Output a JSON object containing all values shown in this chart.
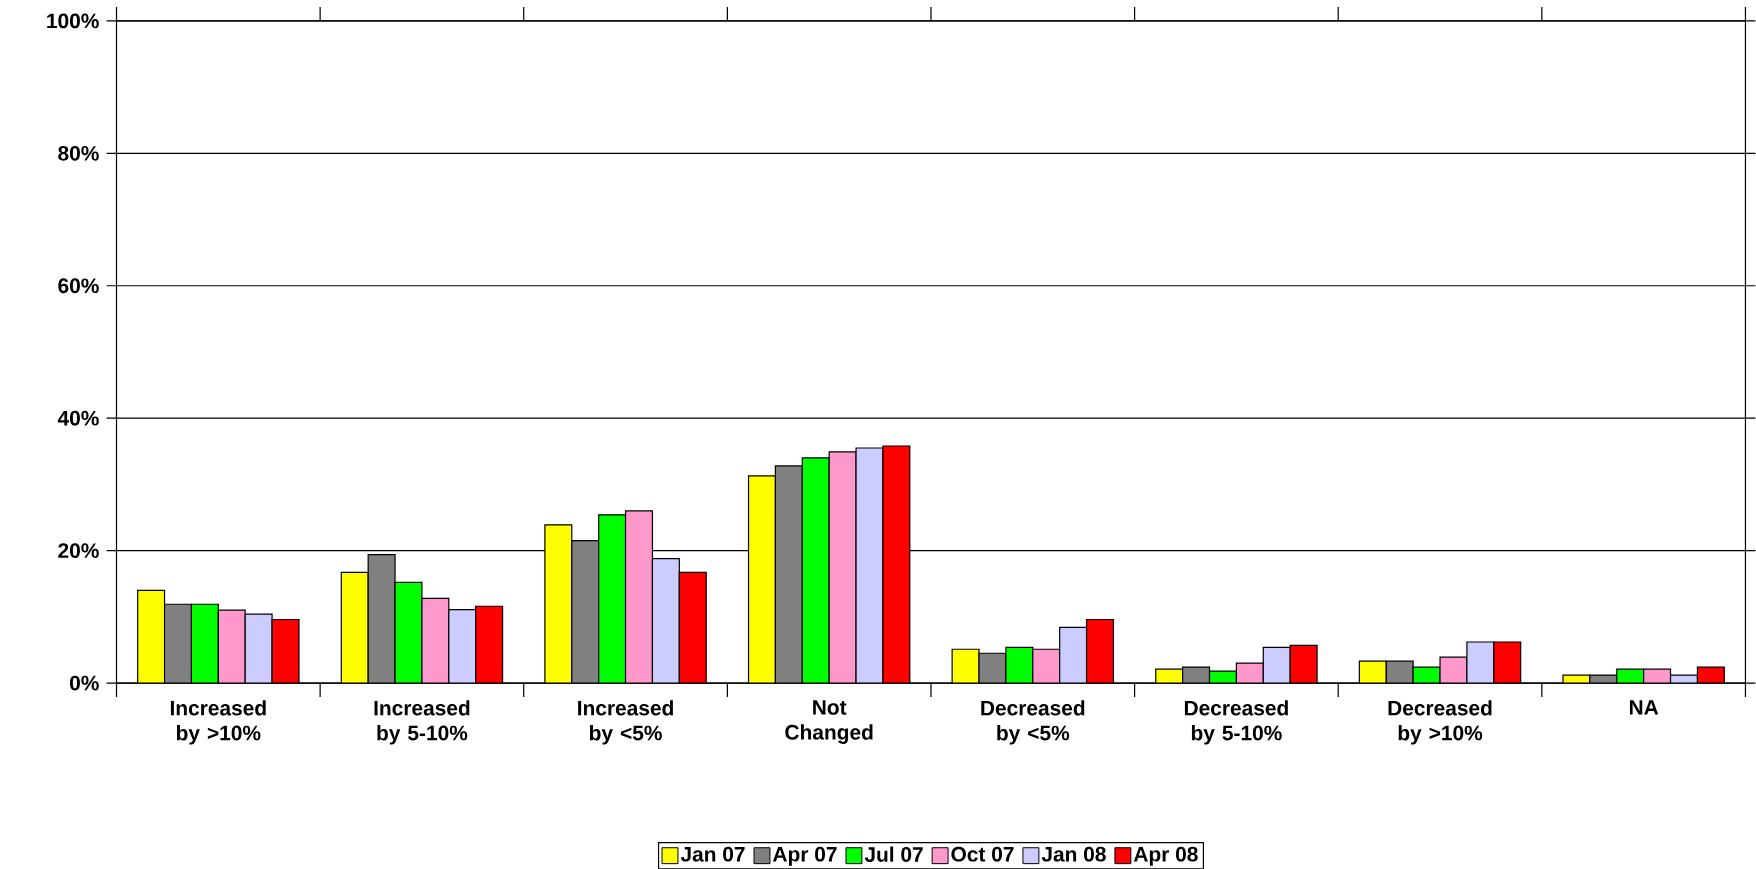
{
  "chart_data": {
    "type": "bar",
    "categories": [
      "Increased by >10%",
      "Increased by 5-10%",
      "Increased by <5%",
      "Not Changed",
      "Decreased by <5%",
      "Decreased by 5-10%",
      "Decreased by >10%",
      "NA"
    ],
    "series": [
      {
        "name": "Jan 07",
        "color": "#ffff00",
        "values": [
          14.0,
          16.7,
          23.9,
          31.3,
          5.1,
          2.1,
          3.3,
          1.2
        ]
      },
      {
        "name": "Apr 07",
        "color": "#808080",
        "values": [
          11.9,
          19.4,
          21.5,
          32.8,
          4.5,
          2.4,
          3.3,
          1.2
        ]
      },
      {
        "name": "Jul 07",
        "color": "#00ff00",
        "values": [
          11.9,
          15.2,
          25.4,
          34.0,
          5.4,
          1.8,
          2.4,
          2.1
        ]
      },
      {
        "name": "Oct 07",
        "color": "#ff99cc",
        "values": [
          11.0,
          12.8,
          26.0,
          34.9,
          5.1,
          3.0,
          3.9,
          2.1
        ]
      },
      {
        "name": "Jan 08",
        "color": "#ccccff",
        "values": [
          10.4,
          11.1,
          18.8,
          35.5,
          8.4,
          5.4,
          6.2,
          1.2
        ]
      },
      {
        "name": "Apr 08",
        "color": "#ff0000",
        "values": [
          9.6,
          11.6,
          16.7,
          35.8,
          9.6,
          5.7,
          6.2,
          2.4
        ]
      }
    ],
    "ylim": [
      0,
      100
    ],
    "yticks": [
      {
        "value": 0,
        "label": "0%"
      },
      {
        "value": 20,
        "label": "20%"
      },
      {
        "value": 40,
        "label": "40%"
      },
      {
        "value": 60,
        "label": "60%"
      },
      {
        "value": 80,
        "label": "80%"
      },
      {
        "value": 100,
        "label": "100%"
      }
    ],
    "grid": "y",
    "legend": "bottom"
  }
}
